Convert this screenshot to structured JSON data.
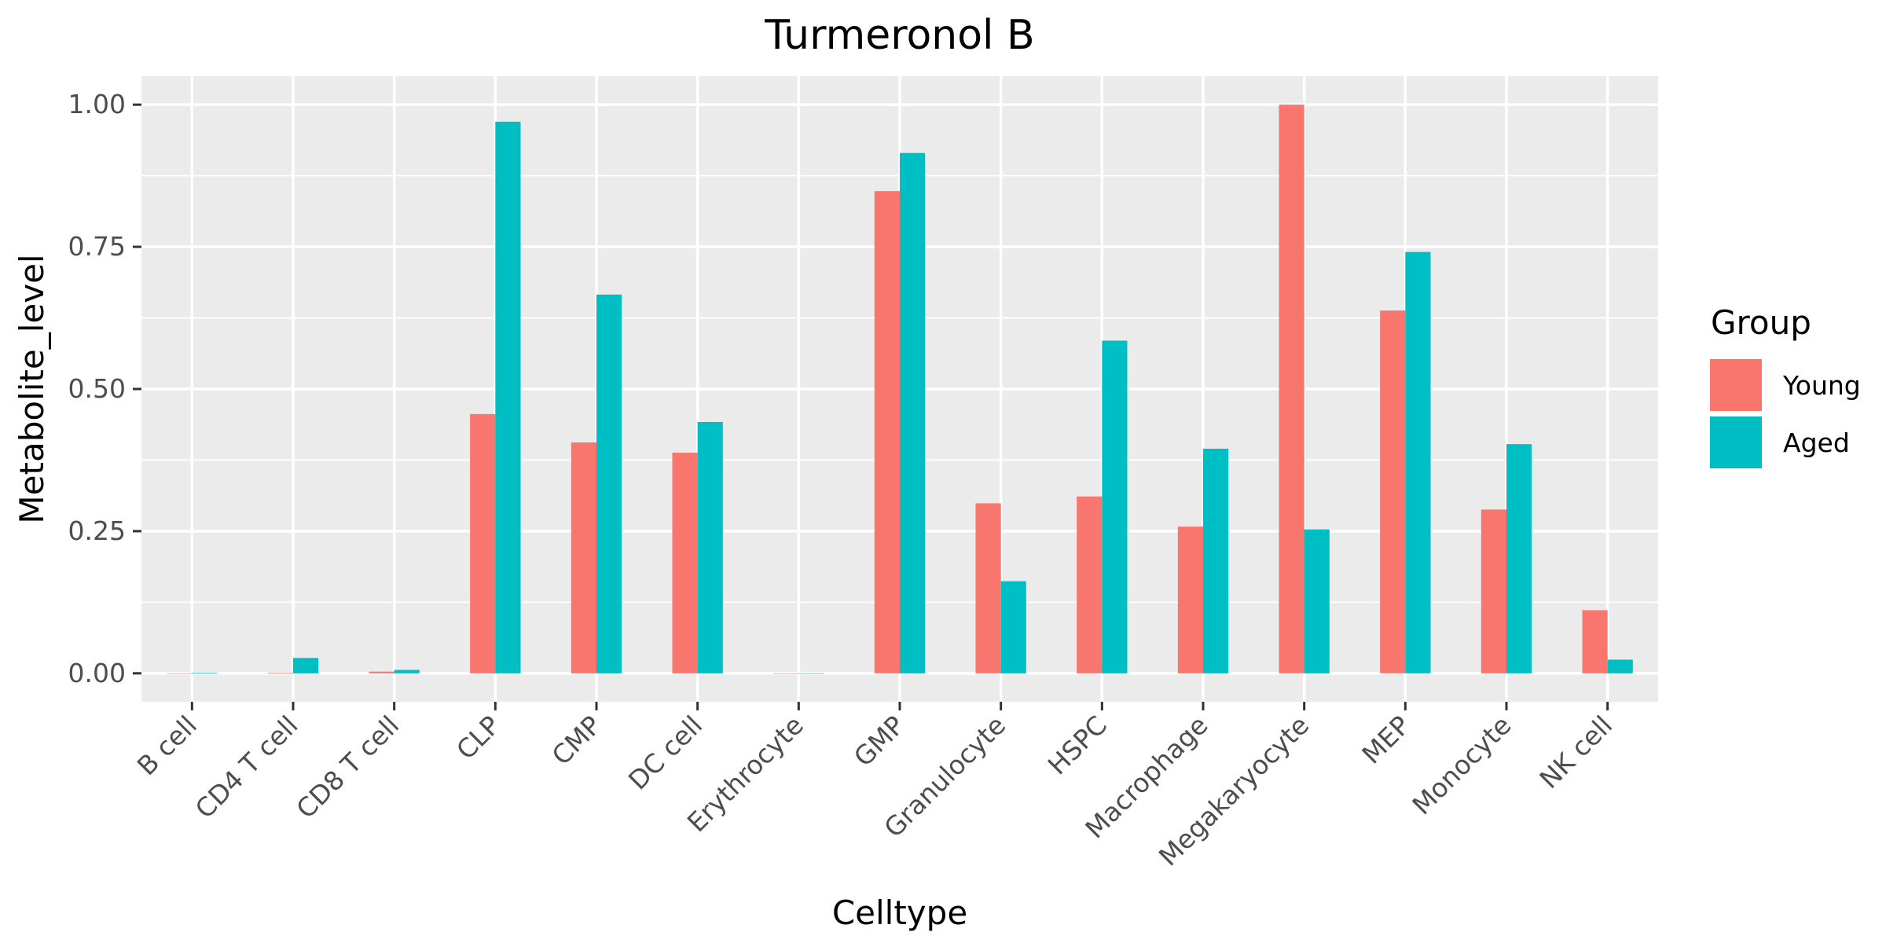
{
  "chart_data": {
    "type": "bar",
    "title": "Turmeronol B",
    "xlabel": "Celltype",
    "ylabel": "Metabolite_level",
    "categories": [
      "B cell",
      "CD4 T cell",
      "CD8 T cell",
      "CLP",
      "CMP",
      "DC cell",
      "Erythrocyte",
      "GMP",
      "Granulocyte",
      "HSPC",
      "Macrophage",
      "Megakaryocyte",
      "MEP",
      "Monocyte",
      "NK cell"
    ],
    "series": [
      {
        "name": "Young",
        "color": "#F8766D",
        "values": [
          0.0,
          0.001,
          0.003,
          0.456,
          0.406,
          0.388,
          0.0,
          0.848,
          0.299,
          0.311,
          0.258,
          1.0,
          0.638,
          0.288,
          0.111
        ]
      },
      {
        "name": "Aged",
        "color": "#00BFC4",
        "values": [
          0.001,
          0.027,
          0.006,
          0.97,
          0.666,
          0.442,
          0.0,
          0.915,
          0.162,
          0.585,
          0.395,
          0.253,
          0.741,
          0.403,
          0.024
        ]
      }
    ],
    "ylim": [
      -0.05,
      1.05
    ],
    "yticks": [
      0.0,
      0.25,
      0.5,
      0.75,
      1.0
    ],
    "ytick_labels": [
      "0.00",
      "0.25",
      "0.50",
      "0.75",
      "1.00"
    ],
    "grid": true,
    "panel_background": "#EBEBEB",
    "legend": {
      "title": "Group",
      "placement": "right"
    }
  }
}
